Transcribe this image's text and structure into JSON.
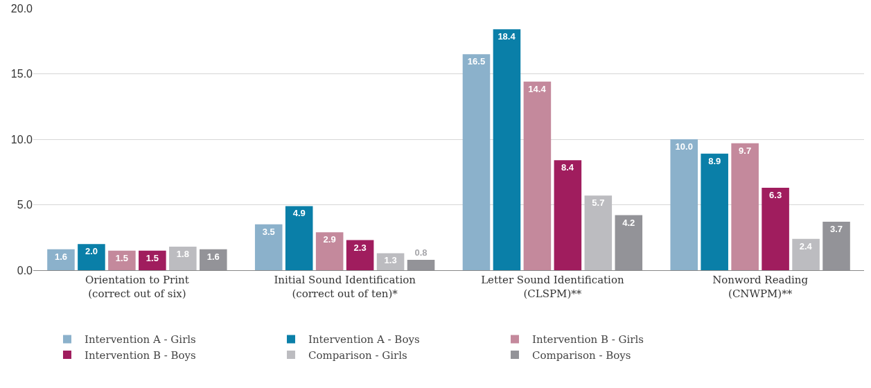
{
  "chart_data": {
    "type": "bar",
    "categories": [
      "Orientation to Print\n(correct out of six)",
      "Initial Sound Identification\n(correct out of ten)*",
      "Letter Sound Identification\n(CLSPM)**",
      "Nonword Reading\n(CNWPM)**"
    ],
    "series": [
      {
        "name": "Intervention A - Girls",
        "color": "#8bb1cb",
        "values": [
          1.6,
          3.5,
          16.5,
          10.0
        ],
        "value_labels": [
          "1.6",
          "3.5",
          "16.5",
          "10.0"
        ]
      },
      {
        "name": "Intervention A - Boys",
        "color": "#0a7fa8",
        "values": [
          2.0,
          4.9,
          18.4,
          8.9
        ],
        "value_labels": [
          "2.0",
          "4.9",
          "18.4",
          "8.9"
        ]
      },
      {
        "name": "Intervention B - Girls",
        "color": "#c4899c",
        "values": [
          1.5,
          2.9,
          14.4,
          9.7
        ],
        "value_labels": [
          "1.5",
          "2.9",
          "14.4",
          "9.7"
        ]
      },
      {
        "name": "Intervention B - Boys",
        "color": "#a01d5e",
        "values": [
          1.5,
          2.3,
          8.4,
          6.3
        ],
        "value_labels": [
          "1.5",
          "2.3",
          "8.4",
          "6.3"
        ]
      },
      {
        "name": "Comparison - Girls",
        "color": "#bcbcc0",
        "values": [
          1.8,
          1.3,
          5.7,
          2.4
        ],
        "value_labels": [
          "1.8",
          "1.3",
          "5.7",
          "2.4"
        ]
      },
      {
        "name": "Comparison - Boys",
        "color": "#939398",
        "values": [
          1.6,
          0.8,
          4.2,
          3.7
        ],
        "value_labels": [
          "1.6",
          "0.8",
          "4.2",
          "3.7"
        ]
      }
    ],
    "ylim": [
      0,
      20
    ],
    "yticks": [
      {
        "value": 0,
        "label": "0.0"
      },
      {
        "value": 5,
        "label": "5.0"
      },
      {
        "value": 10,
        "label": "10.0"
      },
      {
        "value": 15,
        "label": "15.0"
      },
      {
        "value": 20,
        "label": "20.0"
      }
    ],
    "grid": "y",
    "legend": "bottom"
  }
}
